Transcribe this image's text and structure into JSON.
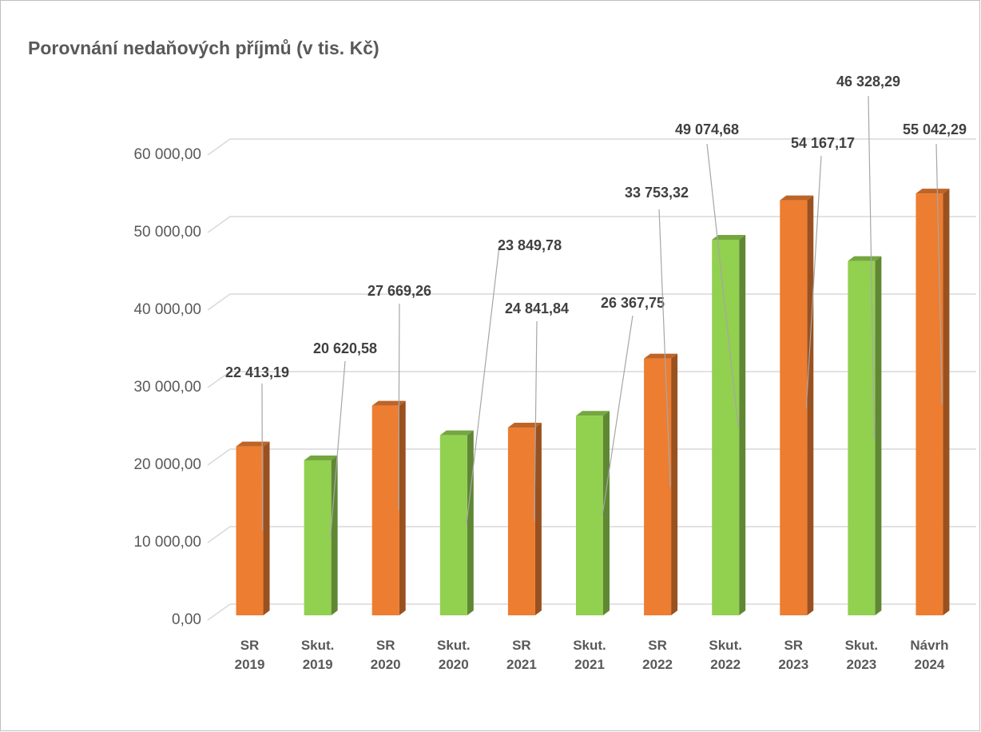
{
  "chart_data": {
    "type": "bar3d",
    "title": "Porovnání nedaňových příjmů (v tis. Kč)",
    "categories": [
      "SR 2019",
      "Skut. 2019",
      "SR 2020",
      "Skut. 2020",
      "SR 2021",
      "Skut. 2021",
      "SR 2022",
      "Skut. 2022",
      "SR 2023",
      "Skut. 2023",
      "Návrh 2024"
    ],
    "values": [
      22413.19,
      20620.58,
      27669.26,
      23849.78,
      24841.84,
      26367.75,
      33753.32,
      49074.68,
      54167.17,
      46328.29,
      55042.29
    ],
    "value_labels": [
      "22 413,19",
      "20 620,58",
      "27 669,26",
      "23 849,78",
      "24 841,84",
      "26 367,75",
      "33 753,32",
      "49 074,68",
      "54 167,17",
      "46 328,29",
      "55 042,29"
    ],
    "colors": [
      "#ED7D31",
      "#92D050",
      "#ED7D31",
      "#92D050",
      "#ED7D31",
      "#92D050",
      "#ED7D31",
      "#92D050",
      "#ED7D31",
      "#92D050",
      "#ED7D31"
    ],
    "ylim": [
      0,
      60000
    ],
    "yticks": [
      {
        "value": 0,
        "label": "0,00"
      },
      {
        "value": 10000,
        "label": "10 000,00"
      },
      {
        "value": 20000,
        "label": "20 000,00"
      },
      {
        "value": 30000,
        "label": "30 000,00"
      },
      {
        "value": 40000,
        "label": "40 000,00"
      },
      {
        "value": 50000,
        "label": "50 000,00"
      },
      {
        "value": 60000,
        "label": "60 000,00"
      }
    ],
    "grid": true
  }
}
